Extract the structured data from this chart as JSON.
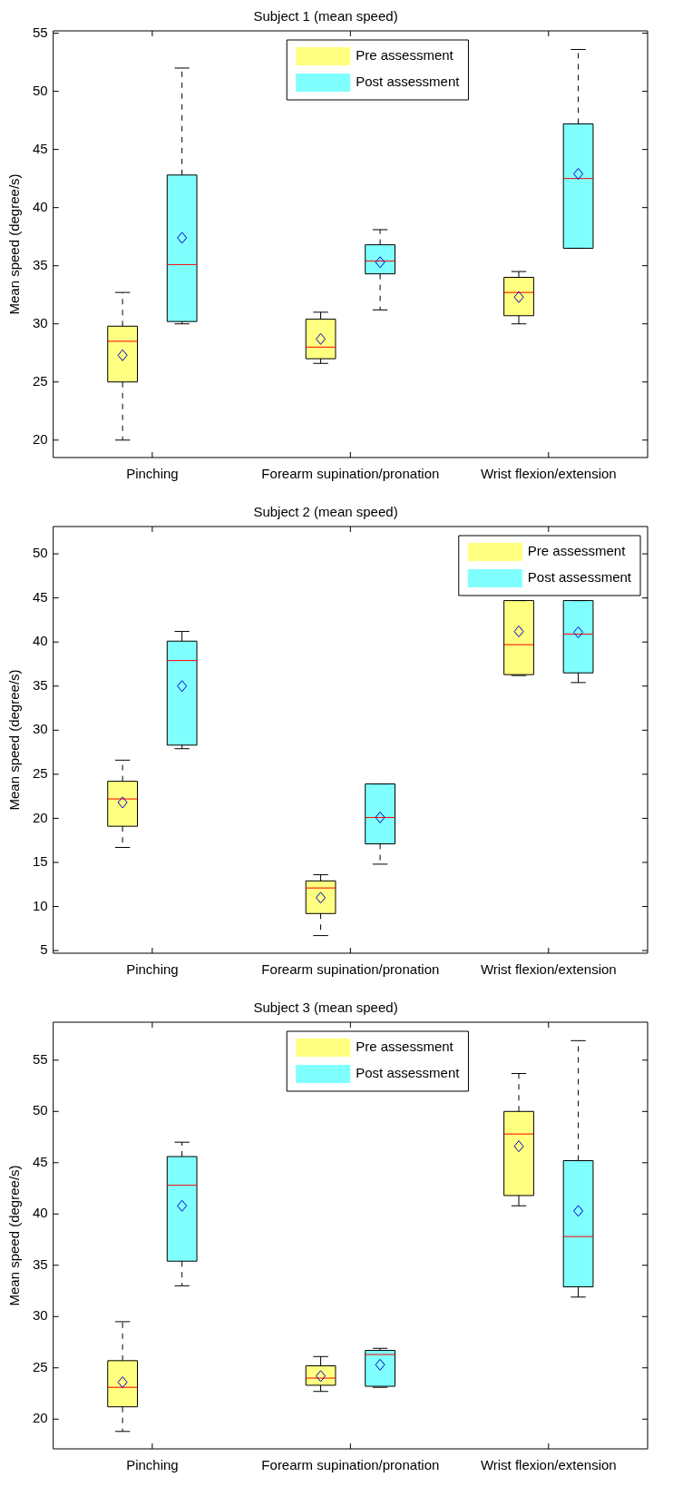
{
  "chart_data": [
    {
      "type": "box",
      "title": "Subject 1 (mean speed)",
      "ylabel": "Mean speed (degree/s)",
      "categories": [
        "Pinching",
        "Forearm supination/pronation",
        "Wrist flexion/extension"
      ],
      "ylim": [
        18.5,
        55.2
      ],
      "yticks": [
        20,
        25,
        30,
        35,
        40,
        45,
        50,
        55
      ],
      "legend": "top",
      "series": [
        {
          "name": "Pre assessment",
          "color": "#ffff80",
          "boxes": [
            {
              "low": 20,
              "q1": 25,
              "median": 28.5,
              "q3": 29.8,
              "high": 32.7,
              "mean": 27.3
            },
            {
              "low": 26.6,
              "q1": 27,
              "median": 28,
              "q3": 30.4,
              "high": 31,
              "mean": 28.7
            },
            {
              "low": 30,
              "q1": 30.7,
              "median": 32.7,
              "q3": 34,
              "high": 34.5,
              "mean": 32.3
            }
          ]
        },
        {
          "name": "Post assessment",
          "color": "#80ffff",
          "boxes": [
            {
              "low": 30,
              "q1": 30.2,
              "median": 35.1,
              "q3": 42.8,
              "high": 52,
              "mean": 37.4
            },
            {
              "low": 31.2,
              "q1": 34.3,
              "median": 35.4,
              "q3": 36.8,
              "high": 38.1,
              "mean": 35.3
            },
            {
              "low": 36.5,
              "q1": 36.5,
              "median": 42.5,
              "q3": 47.2,
              "high": 53.6,
              "mean": 42.9
            }
          ]
        }
      ]
    },
    {
      "type": "box",
      "title": "Subject 2 (mean speed)",
      "ylabel": "Mean speed (degree/s)",
      "categories": [
        "Pinching",
        "Forearm supination/pronation",
        "Wrist flexion/extension"
      ],
      "ylim": [
        4.7,
        53.1
      ],
      "yticks": [
        5,
        10,
        15,
        20,
        25,
        30,
        35,
        40,
        45,
        50
      ],
      "legend": "top right",
      "series": [
        {
          "name": "Pre assessment",
          "color": "#ffff80",
          "boxes": [
            {
              "low": 16.7,
              "q1": 19.1,
              "median": 22.2,
              "q3": 24.2,
              "high": 26.6,
              "mean": 21.8
            },
            {
              "low": 6.7,
              "q1": 9.2,
              "median": 12.1,
              "q3": 12.9,
              "high": 13.6,
              "mean": 11
            },
            {
              "low": 36.2,
              "q1": 36.3,
              "median": 39.7,
              "q3": 44.7,
              "high": 44.7,
              "mean": 41.2
            }
          ]
        },
        {
          "name": "Post assessment",
          "color": "#80ffff",
          "boxes": [
            {
              "low": 27.9,
              "q1": 28.3,
              "median": 37.9,
              "q3": 40.1,
              "high": 41.2,
              "mean": 35
            },
            {
              "low": 14.8,
              "q1": 17.1,
              "median": 20.1,
              "q3": 23.9,
              "high": 23.9,
              "mean": 20.1
            },
            {
              "low": 35.4,
              "q1": 36.5,
              "median": 40.9,
              "q3": 44.7,
              "high": 44.7,
              "mean": 41.1
            }
          ]
        }
      ]
    },
    {
      "type": "box",
      "title": "Subject 3 (mean speed)",
      "ylabel": "Mean speed (degree/s)",
      "categories": [
        "Pinching",
        "Forearm supination/pronation",
        "Wrist flexion/extension"
      ],
      "ylim": [
        17.1,
        58.7
      ],
      "yticks": [
        20,
        25,
        30,
        35,
        40,
        45,
        50,
        55
      ],
      "legend": "top",
      "series": [
        {
          "name": "Pre assessment",
          "color": "#ffff80",
          "boxes": [
            {
              "low": 18.8,
              "q1": 21.2,
              "median": 23.1,
              "q3": 25.7,
              "high": 29.5,
              "mean": 23.6
            },
            {
              "low": 22.7,
              "q1": 23.3,
              "median": 24,
              "q3": 25.2,
              "high": 26.1,
              "mean": 24.2
            },
            {
              "low": 40.8,
              "q1": 41.8,
              "median": 47.8,
              "q3": 50,
              "high": 53.7,
              "mean": 46.6
            }
          ]
        },
        {
          "name": "Post assessment",
          "color": "#80ffff",
          "boxes": [
            {
              "low": 33,
              "q1": 35.4,
              "median": 42.8,
              "q3": 45.6,
              "high": 47,
              "mean": 40.8
            },
            {
              "low": 23.1,
              "q1": 23.2,
              "median": 26.3,
              "q3": 26.7,
              "high": 26.9,
              "mean": 25.3
            },
            {
              "low": 31.9,
              "q1": 32.9,
              "median": 37.8,
              "q3": 45.2,
              "high": 56.9,
              "mean": 40.3
            }
          ]
        }
      ]
    }
  ]
}
